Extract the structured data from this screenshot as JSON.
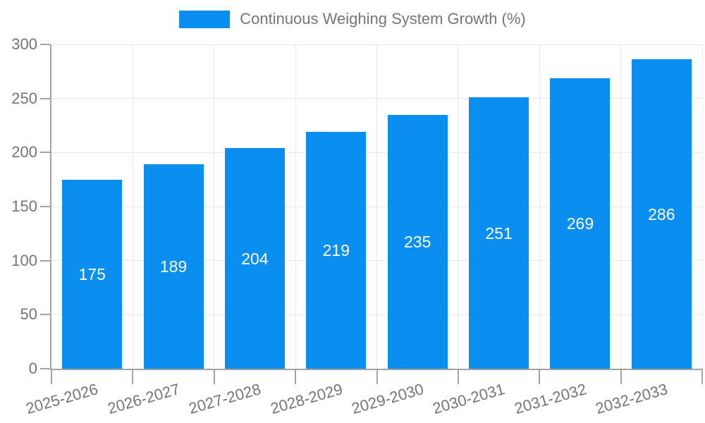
{
  "chart_data": {
    "type": "bar",
    "title": "Continuous Weighing System Growth (%)",
    "categories": [
      "2025-2026",
      "2026-2027",
      "2027-2028",
      "2028-2029",
      "2029-2030",
      "2030-2031",
      "2031-2032",
      "2032-2033"
    ],
    "values": [
      175,
      189,
      204,
      219,
      235,
      251,
      269,
      286
    ],
    "xlabel": "",
    "ylabel": "",
    "ylim": [
      0,
      300
    ],
    "yticks": [
      0,
      50,
      100,
      150,
      200,
      250,
      300
    ],
    "grid": true,
    "legend_position": "top-center",
    "bar_labels_inside": true
  },
  "legend": {
    "label": "Continuous Weighing System Growth (%)"
  },
  "colors": {
    "bar": "#0a8ff0",
    "bar_label": "#ffffff",
    "axis_text": "#757575",
    "axis_line": "#a3a3a3",
    "gridline": "#e8e8e8",
    "background": "#ffffff"
  }
}
